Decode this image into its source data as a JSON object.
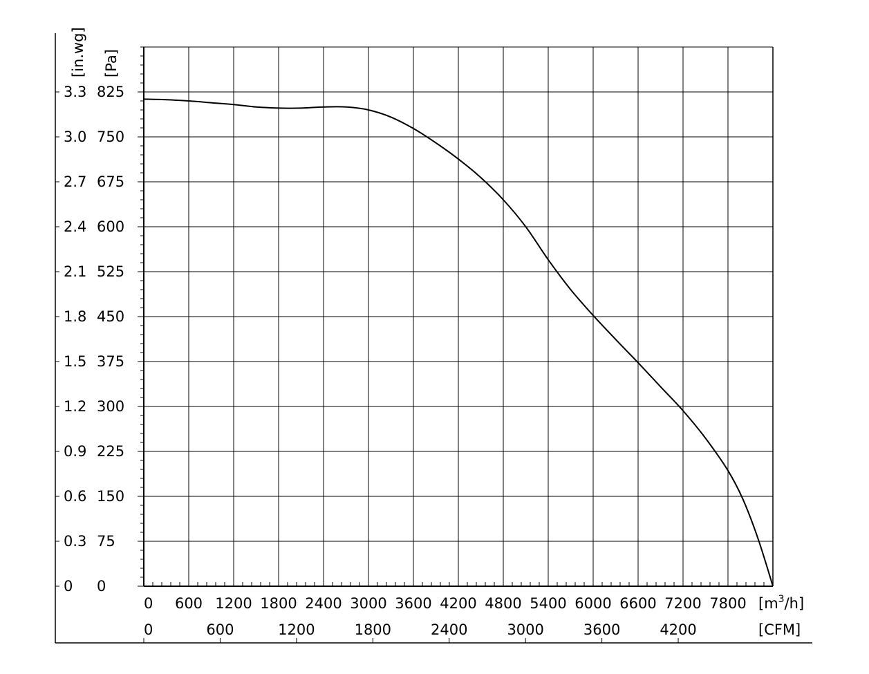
{
  "chart_data": {
    "type": "line",
    "title": "",
    "xlabel": "",
    "ylabel": "",
    "grid": true,
    "x_primary": {
      "unit": "m3/h",
      "unit_parts": {
        "base": "[m",
        "sup": "3",
        "rest": "/h]"
      },
      "range": [
        0,
        8400
      ],
      "ticks": [
        0,
        600,
        1200,
        1800,
        2400,
        3000,
        3600,
        4200,
        4800,
        5400,
        6000,
        6600,
        7200,
        7800
      ],
      "tick_labels": [
        "0",
        "600",
        "1200",
        "1800",
        "2400",
        "3000",
        "3600",
        "4200",
        "4800",
        "5400",
        "6000",
        "6600",
        "7200",
        "7800"
      ],
      "minor_step": 120
    },
    "x_secondary": {
      "unit": "[CFM]",
      "ticks": [
        0,
        600,
        1200,
        1800,
        2400,
        3000,
        3600,
        4200
      ],
      "tick_labels": [
        "0",
        "600",
        "1200",
        "1800",
        "2400",
        "3000",
        "3600",
        "4200"
      ],
      "m3h_per_cfm": 1.699
    },
    "y_primary": {
      "unit": "[Pa]",
      "range": [
        0,
        900
      ],
      "ticks": [
        0,
        75,
        150,
        225,
        300,
        375,
        450,
        525,
        600,
        675,
        750,
        825
      ],
      "tick_labels": [
        "0",
        "75",
        "150",
        "225",
        "300",
        "375",
        "450",
        "525",
        "600",
        "675",
        "750",
        "825"
      ],
      "minor_step": 15
    },
    "y_secondary": {
      "unit": "[in.wg]",
      "tick_labels": [
        "0",
        "0.3",
        "0.6",
        "0.9",
        "1.2",
        "1.5",
        "1.8",
        "2.1",
        "2.4",
        "2.7",
        "3.0",
        "3.3"
      ]
    },
    "series": [
      {
        "color": "#000000",
        "x": [
          0,
          300,
          600,
          900,
          1200,
          1500,
          1800,
          2100,
          2400,
          2700,
          3000,
          3300,
          3600,
          3900,
          4200,
          4500,
          4800,
          5100,
          5400,
          5700,
          6000,
          6300,
          6600,
          6900,
          7200,
          7500,
          7800,
          8000,
          8200,
          8400
        ],
        "y": [
          813,
          812,
          810,
          807,
          804,
          800,
          798,
          798,
          800,
          800,
          795,
          783,
          764,
          740,
          713,
          682,
          645,
          600,
          545,
          495,
          452,
          412,
          373,
          333,
          293,
          247,
          193,
          145,
          80,
          0
        ]
      }
    ]
  }
}
